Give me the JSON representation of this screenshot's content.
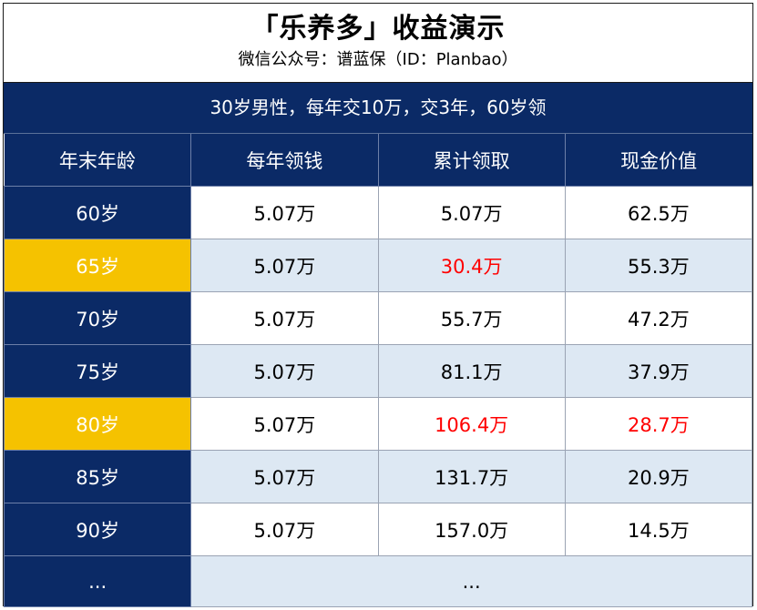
{
  "title": "「乐养多」收益演示",
  "subtitle": "微信公众号：谱蓝保（ID：Planbao）",
  "banner": "30岁男性，每年交10万，交3年，60岁领",
  "headers": [
    "年末年龄",
    "每年领钱",
    "累计领取",
    "现金价值"
  ],
  "rows": [
    {
      "age": "60岁",
      "annual": "5.07万",
      "total": "5.07万",
      "cash": "62.5万"
    },
    {
      "age": "65岁",
      "annual": "5.07万",
      "total": "30.4万",
      "cash": "55.3万"
    },
    {
      "age": "70岁",
      "annual": "5.07万",
      "total": "55.7万",
      "cash": "47.2万"
    },
    {
      "age": "75岁",
      "annual": "5.07万",
      "total": "81.1万",
      "cash": "37.9万"
    },
    {
      "age": "80岁",
      "annual": "5.07万",
      "total": "106.4万",
      "cash": "28.7万"
    },
    {
      "age": "85岁",
      "annual": "5.07万",
      "total": "131.7万",
      "cash": "20.9万"
    },
    {
      "age": "90岁",
      "annual": "5.07万",
      "total": "157.0万",
      "cash": "14.5万"
    }
  ],
  "last_row": {
    "age": "...",
    "rest": "..."
  },
  "colors": {
    "navy": "#0b2a66",
    "highlight": "#f5c200",
    "alt_row": "#dde8f3",
    "emphasis": "#ff0000"
  }
}
